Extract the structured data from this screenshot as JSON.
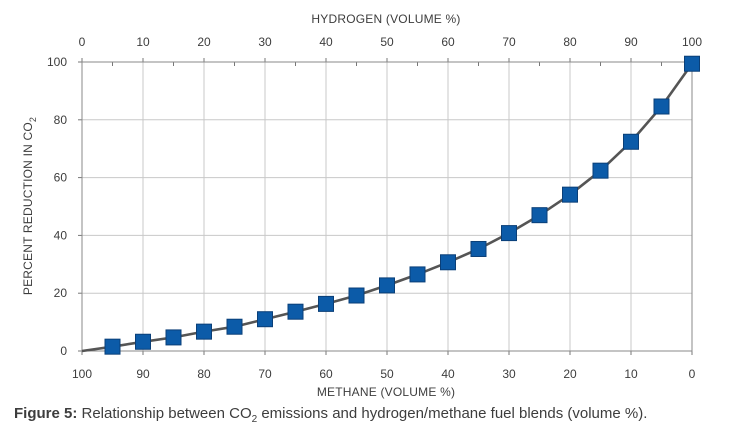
{
  "chart_data": {
    "type": "line",
    "top_axis": {
      "label": "HYDROGEN (VOLUME %)",
      "ticks": [
        "0",
        "10",
        "20",
        "30",
        "40",
        "50",
        "60",
        "70",
        "80",
        "90",
        "100"
      ]
    },
    "bottom_axis": {
      "label": "METHANE (VOLUME %)",
      "ticks": [
        "100",
        "90",
        "80",
        "70",
        "60",
        "50",
        "40",
        "30",
        "20",
        "10",
        "0"
      ]
    },
    "y_axis": {
      "label_main": "PERCENT REDUCTION IN CO",
      "label_sub": "2",
      "ticks": [
        "0",
        "20",
        "40",
        "60",
        "80",
        "100"
      ]
    },
    "xlim": [
      0,
      100
    ],
    "ylim": [
      0,
      100
    ],
    "grid": true,
    "series": [
      {
        "x": [
          0,
          5,
          10,
          15,
          20,
          25,
          30,
          35,
          40,
          45,
          50,
          55,
          60,
          65,
          70,
          75,
          80,
          85,
          90,
          95,
          100
        ],
        "y": [
          0,
          1.5,
          3.2,
          4.7,
          6.7,
          8.4,
          11.0,
          13.6,
          16.3,
          19.2,
          22.7,
          26.5,
          30.7,
          35.3,
          40.8,
          47.0,
          54.1,
          62.4,
          72.4,
          84.6,
          99.4
        ],
        "marker": "square",
        "marker_points": "x>0",
        "line_color": "#555555",
        "marker_color": "#0c5ba8",
        "marker_edge": "#0a3f78"
      }
    ]
  },
  "caption": {
    "label": "Figure 5:",
    "text_before_sub": " Relationship between CO",
    "sub": "2",
    "text_after_sub": " emissions and hydrogen/methane fuel blends (volume %)."
  }
}
